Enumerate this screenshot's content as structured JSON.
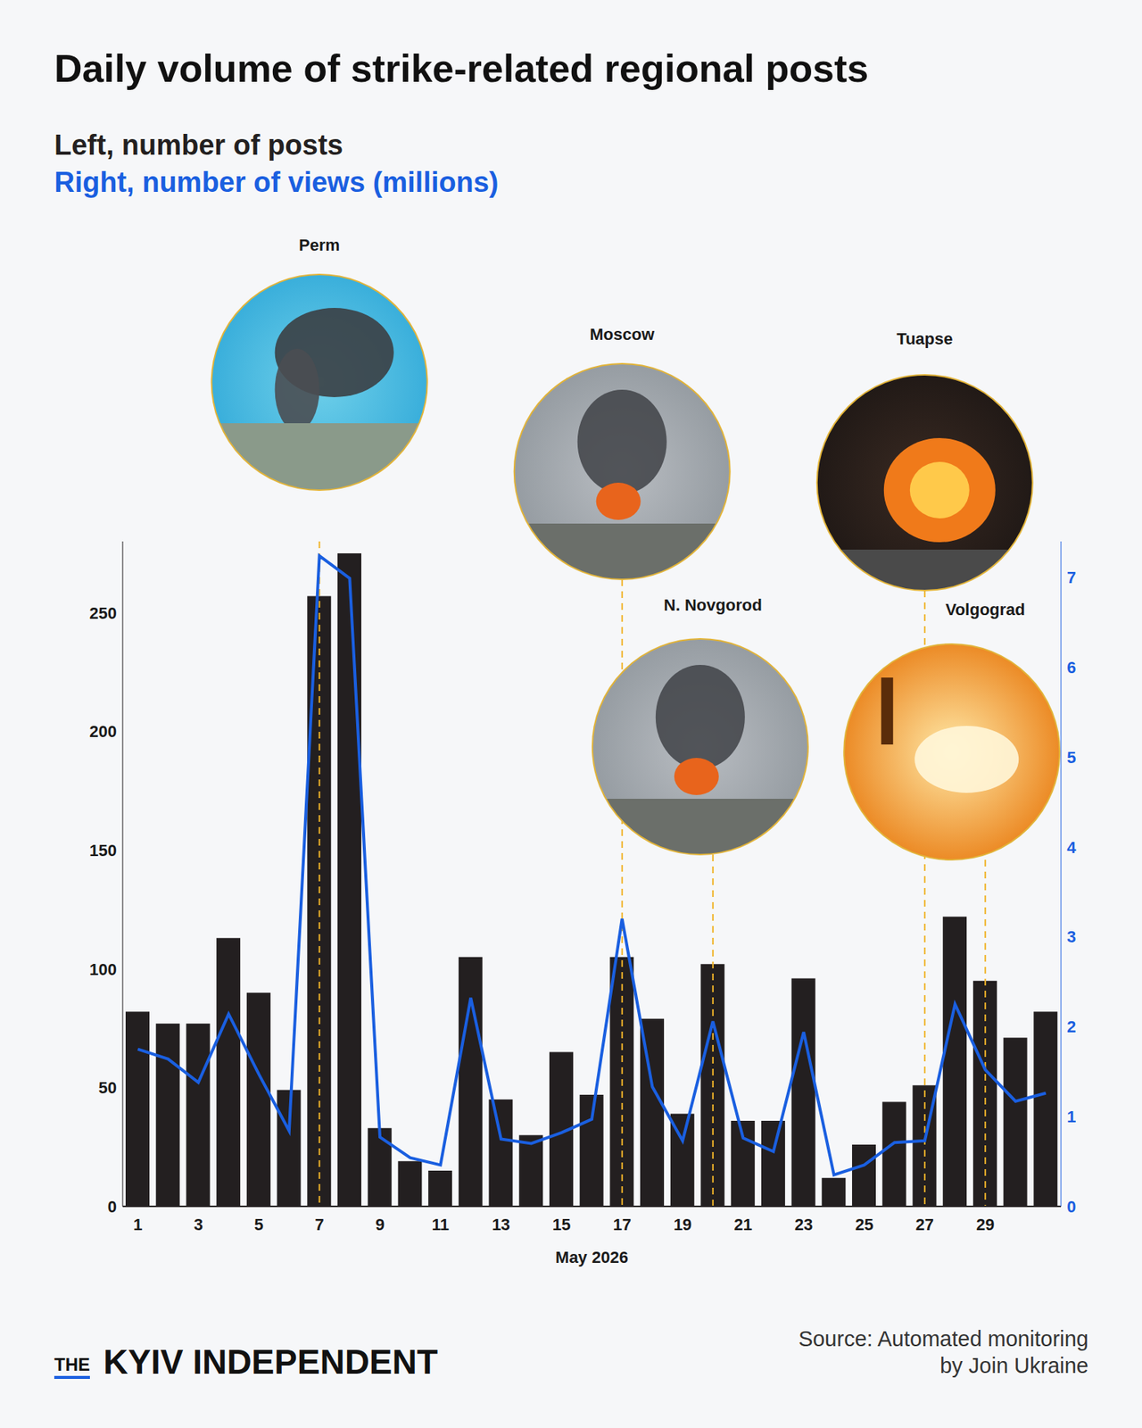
{
  "chart_data": {
    "type": "bar",
    "title": "Daily volume of strike-related regional posts",
    "x_label": "May 2026",
    "legend": "top-left",
    "x": [
      1,
      2,
      3,
      4,
      5,
      6,
      7,
      8,
      9,
      10,
      11,
      12,
      13,
      14,
      15,
      16,
      17,
      18,
      19,
      20,
      21,
      22,
      23,
      24,
      25,
      26,
      27,
      28,
      29,
      30,
      31
    ],
    "xlim": [
      0.5,
      31.5
    ],
    "xticks": [
      1,
      3,
      5,
      7,
      9,
      11,
      13,
      15,
      17,
      19,
      21,
      23,
      25,
      27,
      29
    ],
    "ylim": [
      0,
      280
    ],
    "yticks": [
      0,
      50,
      100,
      150,
      200,
      250
    ],
    "y2lim": [
      0,
      7.4
    ],
    "y2ticks": [
      0,
      1,
      2,
      3,
      4,
      5,
      6,
      7
    ],
    "grid": false,
    "series": [
      {
        "name": "Left, number of posts",
        "type": "bar",
        "color": "#231f20",
        "values": [
          82,
          77,
          77,
          113,
          90,
          49,
          257,
          275,
          33,
          19,
          15,
          105,
          45,
          30,
          65,
          47,
          105,
          79,
          39,
          102,
          36,
          36,
          96,
          12,
          26,
          44,
          51,
          122,
          95,
          71,
          82
        ]
      },
      {
        "name": "Right, number of views (millions)",
        "type": "line",
        "axis": "y2",
        "color": "#1a5fe0",
        "values": [
          1.75,
          1.64,
          1.38,
          2.14,
          1.47,
          0.84,
          7.24,
          6.99,
          0.77,
          0.54,
          0.46,
          2.32,
          0.75,
          0.7,
          0.82,
          0.97,
          3.2,
          1.33,
          0.73,
          2.06,
          0.76,
          0.61,
          1.94,
          0.35,
          0.46,
          0.71,
          0.73,
          2.25,
          1.52,
          1.17,
          1.26
        ]
      }
    ],
    "annotations": [
      {
        "label": "Perm",
        "x": 7
      },
      {
        "label": "Moscow",
        "x": 17
      },
      {
        "label": "N. Novgorod",
        "x": 20
      },
      {
        "label": "Tuapse",
        "x": 27
      },
      {
        "label": "Volgograd",
        "x": 29
      }
    ]
  },
  "source": [
    "Source: Automated monitoring",
    "by Join Ukraine"
  ],
  "logo": [
    "THE",
    "KYIV INDEPENDENT"
  ]
}
